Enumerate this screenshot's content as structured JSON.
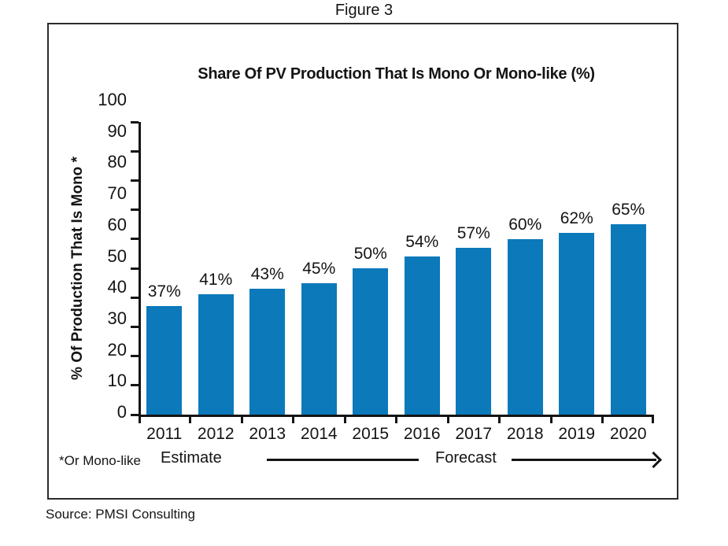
{
  "figure_label": "Figure 3",
  "source": "Source: PMSI Consulting",
  "chart_data": {
    "type": "bar",
    "title": "Share Of PV Production That Is Mono Or Mono-like (%)",
    "ylabel": "% Of Production That Is Mono *",
    "xlabel": "",
    "categories": [
      "2011",
      "2012",
      "2013",
      "2014",
      "2015",
      "2016",
      "2017",
      "2018",
      "2019",
      "2020"
    ],
    "values": [
      37,
      41,
      43,
      45,
      50,
      54,
      57,
      60,
      62,
      65
    ],
    "value_labels": [
      "37%",
      "41%",
      "43%",
      "45%",
      "50%",
      "54%",
      "57%",
      "60%",
      "62%",
      "65%"
    ],
    "ylim": [
      0,
      100
    ],
    "ytick_step": 10,
    "yticks": [
      0,
      10,
      20,
      30,
      40,
      50,
      60,
      70,
      80,
      90,
      100
    ],
    "grid": false,
    "legend": "none",
    "bar_color": "#0b79ba",
    "annotations": {
      "footnote": "*Or Mono-like",
      "estimate": "Estimate",
      "forecast": "Forecast"
    }
  }
}
